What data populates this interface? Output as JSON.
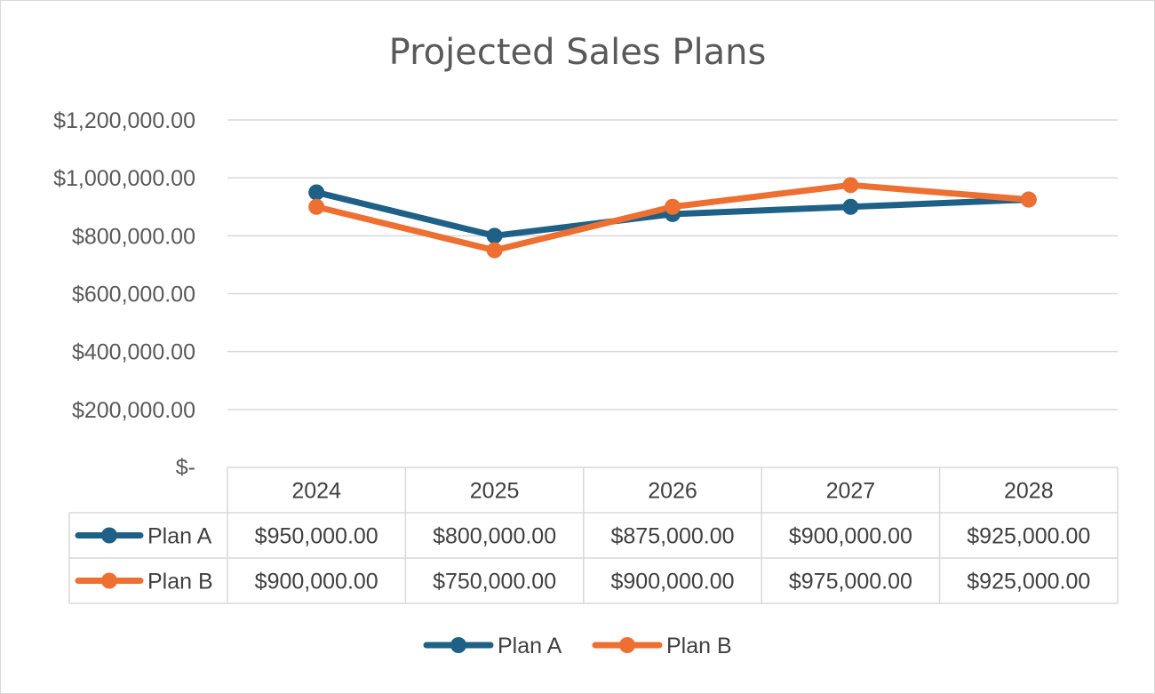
{
  "chart_data": {
    "type": "line",
    "title": "Projected Sales Plans",
    "categories": [
      "2024",
      "2025",
      "2026",
      "2027",
      "2028"
    ],
    "series": [
      {
        "name": "Plan A",
        "color": "#1f6086",
        "values": [
          950000,
          800000,
          875000,
          900000,
          925000
        ],
        "labels": [
          "$950,000.00",
          "$800,000.00",
          "$875,000.00",
          "$900,000.00",
          "$925,000.00"
        ]
      },
      {
        "name": "Plan B",
        "color": "#ed7032",
        "values": [
          900000,
          750000,
          900000,
          975000,
          925000
        ],
        "labels": [
          "$900,000.00",
          "$750,000.00",
          "$900,000.00",
          "$975,000.00",
          "$925,000.00"
        ]
      }
    ],
    "ylim": [
      0,
      1200000
    ],
    "yticks": [
      0,
      200000,
      400000,
      600000,
      800000,
      1000000,
      1200000
    ],
    "ytick_labels": [
      "$-",
      "$200,000.00",
      "$400,000.00",
      "$600,000.00",
      "$800,000.00",
      "$1,000,000.00",
      "$1,200,000.00"
    ],
    "grid": true,
    "data_table": true,
    "legend": "bottom"
  }
}
